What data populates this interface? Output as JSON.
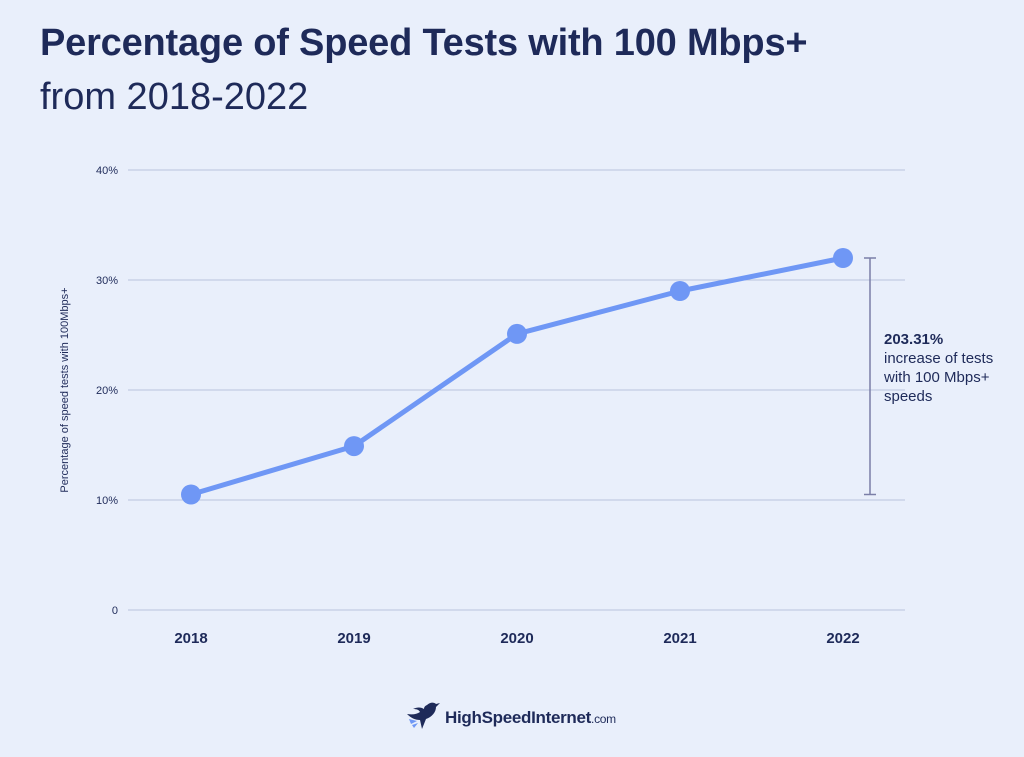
{
  "header": {
    "title": "Percentage of Speed Tests with 100 Mbps+",
    "subtitle": "from 2018-2022"
  },
  "chart_data": {
    "type": "line",
    "title": "Percentage of Speed Tests with 100 Mbps+",
    "subtitle": "from 2018-2022",
    "xlabel": "",
    "ylabel": "Percentage of speed tests with 100Mbps+",
    "categories": [
      "2018",
      "2019",
      "2020",
      "2021",
      "2022"
    ],
    "series": [
      {
        "values": [
          10.5,
          14.9,
          25.1,
          29.0,
          32.0
        ]
      }
    ],
    "ylim": [
      0,
      40
    ],
    "yticks": [
      0,
      10,
      20,
      30,
      40
    ],
    "ytick_labels": [
      "0",
      "10%",
      "20%",
      "30%",
      "40%"
    ],
    "grid": true,
    "line_color": "#6f97f5",
    "annotation": {
      "value": "203.31%",
      "text": "increase of tests with 100 Mbps+ speeds",
      "from": 10.5,
      "to": 32.0
    }
  },
  "branding": {
    "logo_icon": "hummingbird-icon",
    "name": "HighSpeedInternet",
    "suffix": ".com"
  },
  "colors": {
    "background": "#e9effb",
    "text": "#1e2a59",
    "line": "#6f97f5",
    "grid": "#b9c3dc"
  }
}
